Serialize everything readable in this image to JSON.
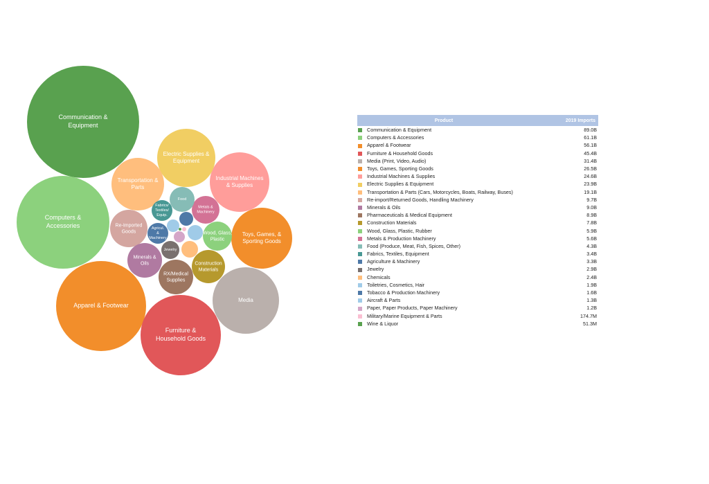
{
  "chart_data": {
    "type": "bubble",
    "table_headers": {
      "product": "Product",
      "value": "2019 Imports"
    },
    "items": [
      {
        "name": "Communication & Equipment",
        "value_label": "89.0B",
        "value": 89.0,
        "color": "#59a14f",
        "bubble_label": [
          "Communication &",
          "Equipment"
        ]
      },
      {
        "name": "Computers & Accessories",
        "value_label": "61.1B",
        "value": 61.1,
        "color": "#8cd17d",
        "bubble_label": [
          "Computers &",
          "Accessories"
        ]
      },
      {
        "name": "Apparel & Footwear",
        "value_label": "56.1B",
        "value": 56.1,
        "color": "#f28e2b",
        "bubble_label": [
          "Apparel & Footwear"
        ]
      },
      {
        "name": "Furniture & Household Goods",
        "value_label": "45.4B",
        "value": 45.4,
        "color": "#e15759",
        "bubble_label": [
          "Furniture &",
          "Household Goods"
        ]
      },
      {
        "name": "Media (Print, Video, Audio)",
        "value_label": "31.4B",
        "value": 31.4,
        "color": "#bab0ac",
        "bubble_label": [
          "Media"
        ]
      },
      {
        "name": "Toys, Games, Sporting Goods",
        "value_label": "26.5B",
        "value": 26.5,
        "color": "#f28e2b",
        "bubble_label": [
          "Toys, Games, &",
          "Sporting Goods"
        ]
      },
      {
        "name": "Industrial Machines & Supplies",
        "value_label": "24.6B",
        "value": 24.6,
        "color": "#ff9d9a",
        "bubble_label": [
          "Industrial Machines",
          "& Supplies"
        ]
      },
      {
        "name": "Electric Supplies & Equipment",
        "value_label": "23.9B",
        "value": 23.9,
        "color": "#f1ce63",
        "bubble_label": [
          "Electric Supplies &",
          "Equipment"
        ]
      },
      {
        "name": "Transportation & Parts (Cars, Motorcycles, Boats, Railway, Buses)",
        "value_label": "19.1B",
        "value": 19.1,
        "color": "#ffbe7d",
        "bubble_label": [
          "Transportation &",
          "Parts"
        ]
      },
      {
        "name": "Re-import/Returned Goods, Handling Machinery",
        "value_label": "9.7B",
        "value": 9.7,
        "color": "#d4a6a0",
        "bubble_label": [
          "Re-Imported",
          "Goods"
        ]
      },
      {
        "name": "Minerals & Oils",
        "value_label": "9.0B",
        "value": 9.0,
        "color": "#b07aa1",
        "bubble_label": [
          "Minerals &",
          "Oils"
        ]
      },
      {
        "name": "Pharmaceuticals & Medical Equipment",
        "value_label": "8.9B",
        "value": 8.9,
        "color": "#9d7660",
        "bubble_label": [
          "RX/Medical",
          "Supplies"
        ]
      },
      {
        "name": "Construction Materials",
        "value_label": "7.8B",
        "value": 7.8,
        "color": "#b6992d",
        "bubble_label": [
          "Construction",
          "Materials"
        ]
      },
      {
        "name": "Wood, Glass, Plastic, Rubber",
        "value_label": "5.9B",
        "value": 5.9,
        "color": "#8cd17d",
        "bubble_label": [
          "Wood, Glass,",
          "Plastic"
        ]
      },
      {
        "name": "Metals & Production Machinery",
        "value_label": "5.6B",
        "value": 5.6,
        "color": "#d37295",
        "bubble_label": [
          "Metals &",
          "Machinery"
        ]
      },
      {
        "name": "Food (Produce, Meat, Fish, Spices, Other)",
        "value_label": "4.3B",
        "value": 4.3,
        "color": "#86bcb6",
        "bubble_label": [
          "Food"
        ]
      },
      {
        "name": "Fabrics, Textiles, Equipment",
        "value_label": "3.4B",
        "value": 3.4,
        "color": "#499894",
        "bubble_label": [
          "Fabrics/",
          "Textiles/",
          "Equip."
        ]
      },
      {
        "name": "Agriculture & Machinery",
        "value_label": "3.3B",
        "value": 3.3,
        "color": "#4e79a7",
        "bubble_label": [
          "Agricul.",
          "&",
          "Machinery"
        ]
      },
      {
        "name": "Jewelry",
        "value_label": "2.9B",
        "value": 2.9,
        "color": "#79706e",
        "bubble_label": [
          "Jewelry"
        ]
      },
      {
        "name": "Chemicals",
        "value_label": "2.4B",
        "value": 2.4,
        "color": "#ffbe7d",
        "bubble_label": []
      },
      {
        "name": "Toiletries, Cosmetics, Hair",
        "value_label": "1.9B",
        "value": 1.9,
        "color": "#a0cbe8",
        "bubble_label": []
      },
      {
        "name": "Tobacco & Production Machinery",
        "value_label": "1.6B",
        "value": 1.6,
        "color": "#4e79a7",
        "bubble_label": []
      },
      {
        "name": "Aircraft & Parts",
        "value_label": "1.3B",
        "value": 1.3,
        "color": "#a0cbe8",
        "bubble_label": []
      },
      {
        "name": "Paper, Paper Products, Paper Machinery",
        "value_label": "1.2B",
        "value": 1.2,
        "color": "#d4a6c8",
        "bubble_label": []
      },
      {
        "name": "Military/Marine Equipment & Parts",
        "value_label": "174.7M",
        "value": 0.1747,
        "color": "#fabfd2",
        "bubble_label": []
      },
      {
        "name": "Wine & Liquor",
        "value_label": "51.3M",
        "value": 0.0513,
        "color": "#59a14f",
        "bubble_label": []
      }
    ]
  }
}
